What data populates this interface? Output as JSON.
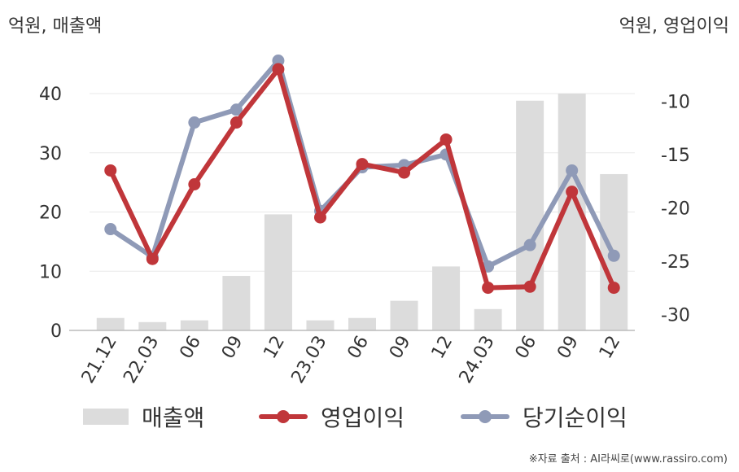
{
  "unit_left": "억원, 매출액",
  "unit_right": "억원, 영업이익",
  "source": "※자료 출처 : AI라씨로(www.rassiro.com)",
  "legend": {
    "revenue": "매출액",
    "operating": "영업이익",
    "net": "당기순이익"
  },
  "colors": {
    "revenue": "#dcdcdc",
    "operating": "#c0363a",
    "net": "#8f9ab7",
    "grid": "#e8e8e8",
    "axis": "#bbbbbb"
  },
  "chart_data": {
    "type": "bar+line",
    "categories": [
      "21.12",
      "22.03",
      "06",
      "09",
      "12",
      "23.03",
      "06",
      "09",
      "12",
      "24.03",
      "06",
      "09",
      "12"
    ],
    "left_axis": {
      "ylim": [
        0,
        40
      ],
      "ticks": [
        0,
        10,
        20,
        30,
        40
      ]
    },
    "right_axis": {
      "ylim": [
        -31.5,
        -7
      ],
      "ticks": [
        -30,
        -25,
        -20,
        -15,
        -10
      ]
    },
    "series": [
      {
        "name": "매출액",
        "type": "bar",
        "axis": "left",
        "values": [
          2.1,
          1.4,
          1.7,
          9.2,
          19.6,
          1.7,
          2.1,
          5.0,
          10.8,
          3.6,
          38.8,
          40.0,
          26.4
        ]
      },
      {
        "name": "영업이익",
        "type": "line",
        "axis": "right",
        "values": [
          -16.5,
          -24.8,
          -17.8,
          -12.0,
          -7.0,
          -20.9,
          -15.9,
          -16.7,
          -13.6,
          -27.5,
          -27.4,
          -18.5,
          -27.5
        ]
      },
      {
        "name": "당기순이익",
        "type": "line",
        "axis": "right",
        "values": [
          -22.0,
          -24.6,
          -12.0,
          -10.8,
          -6.2,
          -20.3,
          -16.2,
          -16.0,
          -15.0,
          -25.5,
          -23.5,
          -16.5,
          -24.5
        ]
      }
    ],
    "legend_position": "bottom",
    "grid": true
  }
}
